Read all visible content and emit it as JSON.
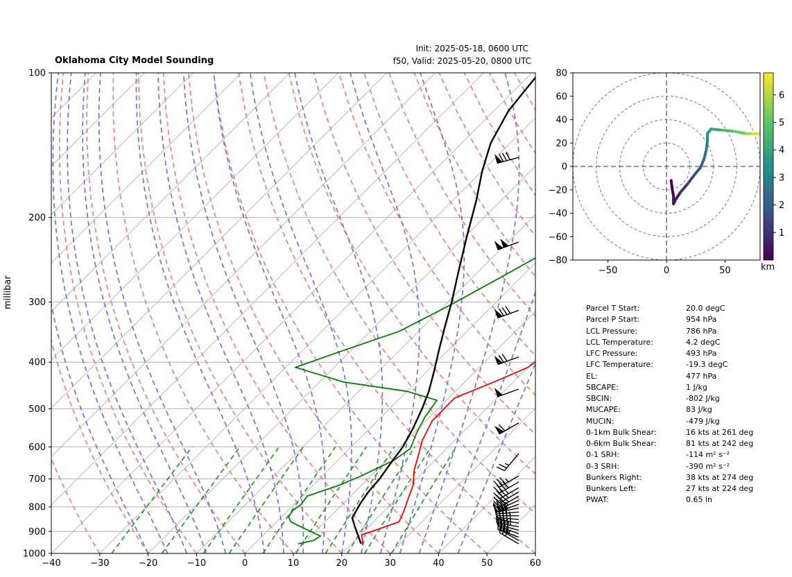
{
  "title": "Oklahoma City Model Sounding",
  "init_text": "Init: 2025-05-18, 0600 UTC",
  "valid_text": "f50, Valid: 2025-05-20, 0800 UTC",
  "colors": {
    "temperature": "#ff0000",
    "dewpoint": "#008000",
    "parcel": "#000000",
    "dry_adiabat": "#f08080",
    "moist_adiabat": "#7070f0",
    "mixing_ratio": "#229922",
    "freezing_isotherm": "#9040c0"
  },
  "chart_data": [
    {
      "type": "line",
      "name": "skew-t",
      "xlabel": "",
      "ylabel": "millibar",
      "xlim": [
        -40,
        60
      ],
      "ylim": [
        1000,
        100
      ],
      "y_scale": "log",
      "x_ticks": [
        "−40",
        "−30",
        "−20",
        "−10",
        "0",
        "10",
        "20",
        "30",
        "40",
        "50",
        "60"
      ],
      "y_ticks": [
        "100",
        "200",
        "300",
        "400",
        "500",
        "600",
        "700",
        "800",
        "900",
        "1000"
      ],
      "grid": true,
      "series": [
        {
          "key": "temperature",
          "points": [
            [
              22.5,
              960
            ],
            [
              22.1,
              950
            ],
            [
              20.3,
              915
            ],
            [
              25.3,
              860
            ],
            [
              24.2,
              820
            ],
            [
              22.6,
              775
            ],
            [
              20.6,
              720
            ],
            [
              17.8,
              672
            ],
            [
              15.3,
              620
            ],
            [
              13.3,
              582
            ],
            [
              11.3,
              530
            ],
            [
              11.2,
              475
            ],
            [
              16.0,
              440
            ],
            [
              20.0,
              410
            ],
            [
              21.0,
              385
            ],
            [
              19.0,
              350
            ],
            [
              17.0,
              310
            ],
            [
              15.0,
              270
            ],
            [
              14.5,
              230
            ],
            [
              18.0,
              188
            ],
            [
              25.0,
              160
            ],
            [
              32.0,
              137
            ],
            [
              40.0,
              118
            ],
            [
              46.0,
              100
            ]
          ]
        },
        {
          "key": "dewpoint",
          "points": [
            [
              9.0,
              955
            ],
            [
              11.5,
              940
            ],
            [
              12.0,
              920
            ],
            [
              10.5,
              910
            ],
            [
              6.0,
              880
            ],
            [
              3.0,
              860
            ],
            [
              1.5,
              840
            ],
            [
              1.0,
              815
            ],
            [
              1.5,
              790
            ],
            [
              1.0,
              760
            ],
            [
              5.5,
              720
            ],
            [
              8.0,
              690
            ],
            [
              11.5,
              640
            ],
            [
              12.5,
              605
            ],
            [
              10.5,
              560
            ],
            [
              9.0,
              520
            ],
            [
              8.0,
              480
            ],
            [
              0.0,
              460
            ],
            [
              -15.0,
              440
            ],
            [
              -28.0,
              410
            ],
            [
              -22.0,
              380
            ],
            [
              -14.0,
              345
            ],
            [
              -9.0,
              305
            ],
            [
              -4.0,
              265
            ],
            [
              2.0,
              222
            ],
            [
              8.0,
              182
            ],
            [
              15.0,
              148
            ],
            [
              22.0,
              125
            ],
            [
              30.0,
              100
            ]
          ]
        },
        {
          "key": "parcel",
          "points": [
            [
              22.0,
              955
            ],
            [
              19.5,
              915
            ],
            [
              17.2,
              880
            ],
            [
              14.8,
              843
            ],
            [
              13.5,
              786
            ],
            [
              12.8,
              745
            ],
            [
              12.4,
              700
            ],
            [
              11.5,
              650
            ],
            [
              10.6,
              600
            ],
            [
              8.9,
              550
            ],
            [
              6.7,
              500
            ],
            [
              4.5,
              460
            ],
            [
              1.6,
              420
            ],
            [
              -1.7,
              380
            ],
            [
              -5.3,
              340
            ],
            [
              -9.2,
              300
            ],
            [
              -14.0,
              260
            ],
            [
              -19.5,
              220
            ],
            [
              -25.0,
              185
            ],
            [
              -30.0,
              160
            ],
            [
              -34.0,
              140
            ],
            [
              -37.0,
              120
            ],
            [
              -38.5,
              100
            ]
          ]
        }
      ],
      "wind_barbs": [
        {
          "p": 955,
          "speed": 30,
          "dir": 300
        },
        {
          "p": 940,
          "speed": 35,
          "dir": 300
        },
        {
          "p": 925,
          "speed": 35,
          "dir": 290
        },
        {
          "p": 910,
          "speed": 40,
          "dir": 290
        },
        {
          "p": 895,
          "speed": 40,
          "dir": 285
        },
        {
          "p": 880,
          "speed": 45,
          "dir": 280
        },
        {
          "p": 865,
          "speed": 45,
          "dir": 280
        },
        {
          "p": 850,
          "speed": 45,
          "dir": 275
        },
        {
          "p": 835,
          "speed": 45,
          "dir": 270
        },
        {
          "p": 820,
          "speed": 40,
          "dir": 265
        },
        {
          "p": 805,
          "speed": 35,
          "dir": 260
        },
        {
          "p": 790,
          "speed": 40,
          "dir": 250
        },
        {
          "p": 775,
          "speed": 35,
          "dir": 245
        },
        {
          "p": 760,
          "speed": 35,
          "dir": 240
        },
        {
          "p": 745,
          "speed": 35,
          "dir": 240
        },
        {
          "p": 730,
          "speed": 35,
          "dir": 240
        },
        {
          "p": 710,
          "speed": 40,
          "dir": 240
        },
        {
          "p": 690,
          "speed": 35,
          "dir": 240
        },
        {
          "p": 620,
          "speed": 25,
          "dir": 220
        },
        {
          "p": 535,
          "speed": 60,
          "dir": 240
        },
        {
          "p": 455,
          "speed": 50,
          "dir": 250
        },
        {
          "p": 390,
          "speed": 70,
          "dir": 250
        },
        {
          "p": 312,
          "speed": 80,
          "dir": 250
        },
        {
          "p": 225,
          "speed": 100,
          "dir": 250
        },
        {
          "p": 150,
          "speed": 80,
          "dir": 255
        }
      ]
    },
    {
      "type": "line",
      "name": "hodograph",
      "xlim": [
        -80,
        80
      ],
      "ylim": [
        -80,
        80
      ],
      "x_ticks": [
        "−50",
        "0",
        "50"
      ],
      "y_ticks": [
        "80",
        "60",
        "40",
        "20",
        "0",
        "−20",
        "−40",
        "−60",
        "−80"
      ],
      "rings": [
        20,
        40,
        60,
        80
      ],
      "colorbar_ticks": [
        "1",
        "2",
        "3",
        "4",
        "5",
        "6"
      ],
      "colorbar_label": "km",
      "colorbar_range": [
        0,
        6.8
      ],
      "points": [
        [
          4,
          -12,
          0.0
        ],
        [
          5,
          -20,
          0.1
        ],
        [
          6,
          -25,
          0.2
        ],
        [
          6,
          -32,
          0.35
        ],
        [
          8,
          -28,
          0.5
        ],
        [
          12,
          -22,
          0.8
        ],
        [
          18,
          -15,
          1.2
        ],
        [
          24,
          -7,
          1.6
        ],
        [
          29,
          -1,
          2.0
        ],
        [
          32,
          6,
          2.3
        ],
        [
          34,
          14,
          2.7
        ],
        [
          35,
          22,
          3.1
        ],
        [
          35,
          28,
          3.4
        ],
        [
          38,
          32,
          3.8
        ],
        [
          48,
          31,
          4.3
        ],
        [
          58,
          30,
          4.9
        ],
        [
          68,
          28,
          5.5
        ],
        [
          74,
          28,
          6.1
        ],
        [
          80,
          28,
          6.8
        ]
      ]
    }
  ],
  "params": [
    {
      "label": "Parcel T Start:",
      "value": "20.0 degC"
    },
    {
      "label": "Parcel P Start:",
      "value": "954 hPa"
    },
    {
      "label": "LCL Pressure:",
      "value": "786 hPa"
    },
    {
      "label": "LCL Temperature:",
      "value": "4.2 degC"
    },
    {
      "label": "LFC Pressure:",
      "value": "493 hPa"
    },
    {
      "label": "LFC Temperature:",
      "value": "-19.3 degC"
    },
    {
      "label": "EL:",
      "value": "477 hPa"
    },
    {
      "label": "SBCAPE:",
      "value": "1 J/kg"
    },
    {
      "label": "SBCIN:",
      "value": "-802 J/kg"
    },
    {
      "label": "MUCAPE:",
      "value": "83 J/kg"
    },
    {
      "label": "MUCIN:",
      "value": "-479 J/kg"
    },
    {
      "label": "0-1km Bulk Shear:",
      "value": "16 kts at 261 deg"
    },
    {
      "label": "0-6km Bulk Shear:",
      "value": "81 kts at 242 deg"
    },
    {
      "label": "0-1 SRH:",
      "value": "-114 m² s⁻²"
    },
    {
      "label": "0-3 SRH:",
      "value": "-390 m² s⁻²"
    },
    {
      "label": "Bunkers Right:",
      "value": "38 kts at 274 deg"
    },
    {
      "label": "Bunkers Left:",
      "value": "27 kts at 224 deg"
    },
    {
      "label": "PWAT:",
      "value": "0.65 in"
    }
  ]
}
